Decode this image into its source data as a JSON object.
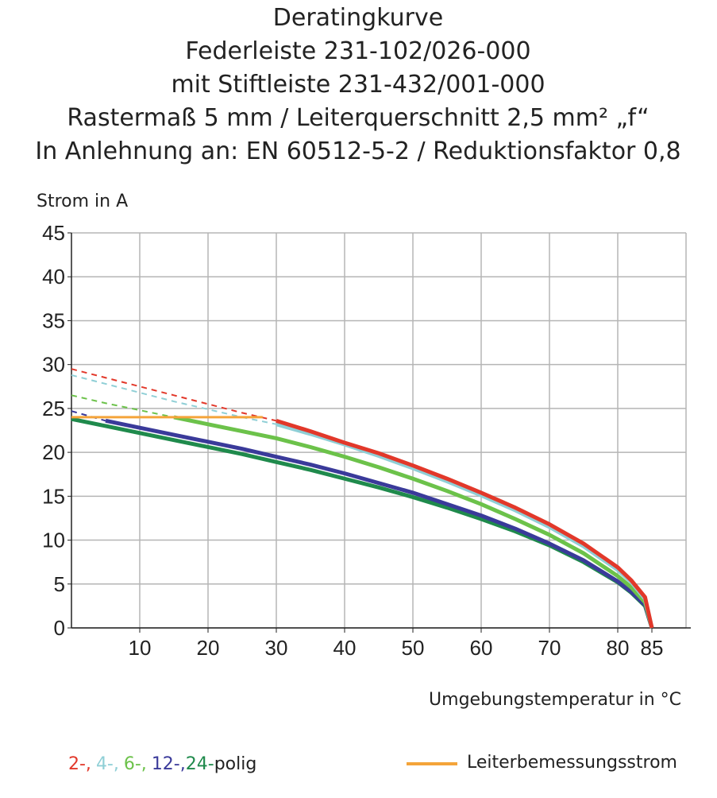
{
  "chart_data": {
    "type": "line",
    "title": [
      "Deratingkurve",
      "Federleiste 231-102/026-000",
      "mit Stiftleiste 231-432/001-000",
      "Rastermaß 5 mm / Leiterquerschnitt 2,5 mm² „f“",
      "In Anlehnung an: EN 60512-5-2 / Reduktionsfaktor 0,8"
    ],
    "y_label": "Strom in A",
    "x_label": "Umgebungstemperatur in °C",
    "xlim": [
      0,
      90
    ],
    "ylim": [
      0,
      45
    ],
    "xticks": [
      10,
      20,
      30,
      40,
      50,
      60,
      70,
      80,
      85
    ],
    "xgrid": [
      10,
      20,
      30,
      40,
      50,
      60,
      70,
      80,
      90
    ],
    "yticks": [
      0,
      5,
      10,
      15,
      20,
      25,
      30,
      35,
      40,
      45
    ],
    "grid": true,
    "legend_suffix": "polig",
    "series": [
      {
        "name": "2-,",
        "color": "#e2382a",
        "x": [
          30,
          35,
          40,
          45,
          50,
          55,
          60,
          65,
          70,
          75,
          80,
          82,
          84,
          85
        ],
        "values": [
          23.6,
          22.4,
          21.1,
          19.9,
          18.5,
          17,
          15.4,
          13.7,
          11.8,
          9.6,
          6.9,
          5.4,
          3.5,
          0
        ],
        "dashed_x": [
          0,
          5,
          10,
          15,
          20,
          25,
          30
        ],
        "dashed_values": [
          29.5,
          28.5,
          27.5,
          26.5,
          25.5,
          24.5,
          23.6
        ]
      },
      {
        "name": "4-,",
        "color": "#8fcfd6",
        "x": [
          30,
          35,
          40,
          45,
          50,
          55,
          60,
          65,
          70,
          75,
          80,
          82,
          84,
          85
        ],
        "values": [
          23.2,
          22.1,
          20.9,
          19.6,
          18.2,
          16.7,
          15.1,
          13.4,
          11.5,
          9.3,
          6.6,
          5.2,
          3.3,
          0
        ],
        "dashed_x": [
          0,
          5,
          10,
          15,
          20,
          25,
          30
        ],
        "dashed_values": [
          28.8,
          27.8,
          26.8,
          25.8,
          24.9,
          24,
          23.2
        ]
      },
      {
        "name": "6-,",
        "color": "#6cc24a",
        "x": [
          15,
          20,
          25,
          30,
          35,
          40,
          45,
          50,
          55,
          60,
          65,
          70,
          75,
          80,
          82,
          84,
          85
        ],
        "values": [
          24,
          23.2,
          22.4,
          21.6,
          20.6,
          19.5,
          18.3,
          17,
          15.6,
          14.1,
          12.4,
          10.6,
          8.5,
          5.9,
          4.6,
          2.9,
          0
        ],
        "dashed_x": [
          0,
          5,
          10,
          15
        ],
        "dashed_values": [
          26.5,
          25.6,
          24.8,
          24
        ]
      },
      {
        "name": "12-,",
        "color": "#3a3a9a",
        "x": [
          5,
          10,
          15,
          20,
          25,
          30,
          35,
          40,
          45,
          50,
          55,
          60,
          65,
          70,
          75,
          80,
          82,
          84,
          85
        ],
        "values": [
          23.6,
          22.8,
          22,
          21.2,
          20.4,
          19.5,
          18.6,
          17.6,
          16.5,
          15.4,
          14.1,
          12.8,
          11.3,
          9.6,
          7.7,
          5.3,
          4.1,
          2.6,
          0
        ],
        "dashed_x": [
          0,
          5
        ],
        "dashed_values": [
          24.7,
          23.6
        ]
      },
      {
        "name": "24-",
        "color": "#1f8a4c",
        "x": [
          0,
          5,
          10,
          15,
          20,
          25,
          30,
          35,
          40,
          45,
          50,
          55,
          60,
          65,
          70,
          75,
          80,
          82,
          84,
          85
        ],
        "values": [
          23.8,
          23,
          22.2,
          21.4,
          20.6,
          19.8,
          18.9,
          18,
          17,
          16,
          14.9,
          13.7,
          12.4,
          11,
          9.4,
          7.5,
          5.2,
          4,
          2.5,
          0
        ]
      },
      {
        "name": "Leiterbemessungsstrom",
        "color": "#f4a43a",
        "x": [
          0,
          28
        ],
        "values": [
          24,
          24
        ]
      }
    ]
  }
}
